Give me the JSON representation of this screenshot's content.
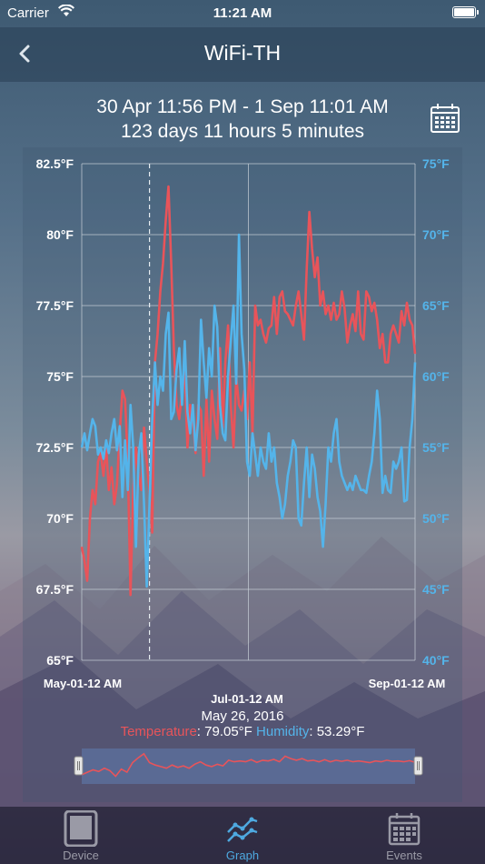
{
  "status_bar": {
    "carrier": "Carrier",
    "time": "11:21 AM"
  },
  "nav": {
    "title": "WiFi-TH"
  },
  "range": {
    "dates": "30 Apr 11:56 PM - 1 Sep 11:01 AM",
    "duration": "123 days 11 hours 5 minutes"
  },
  "tabs": [
    {
      "label": "Device",
      "icon": "tablet-icon",
      "active": false
    },
    {
      "label": "Graph",
      "icon": "line-graph-icon",
      "active": true
    },
    {
      "label": "Events",
      "icon": "calendar-icon",
      "active": false
    }
  ],
  "readout": {
    "date": "May 26, 2016",
    "temperature_label": "Temperature",
    "temperature_value": ": 79.05°F",
    "humidity_label": "Humidity",
    "humidity_value": ": 53.29°F"
  },
  "colors": {
    "temperature": "#e8545a",
    "humidity": "#54b4ea",
    "grid": "#c8d0d8"
  },
  "chart_data": {
    "type": "line",
    "x_ticks": [
      "May-01-12 AM",
      "Jul-01-12 AM",
      "Sep-01-12 AM"
    ],
    "y_left_ticks": [
      "82.5°F",
      "80°F",
      "77.5°F",
      "75°F",
      "72.5°F",
      "70°F",
      "67.5°F",
      "65°F"
    ],
    "y_right_ticks": [
      "75°F",
      "70°F",
      "65°F",
      "60°F",
      "55°F",
      "50°F",
      "45°F",
      "40°F"
    ],
    "y_left_range": [
      65,
      82.5
    ],
    "y_right_range": [
      40,
      75
    ],
    "x_range_days": [
      0,
      123
    ],
    "cursor_day": 25,
    "series": [
      {
        "name": "Temperature",
        "axis": "left",
        "values": [
          69,
          68.5,
          67.8,
          70,
          71,
          70.5,
          72,
          72.3,
          71.5,
          72.5,
          71,
          71.8,
          70.5,
          71.2,
          73,
          74.5,
          74.2,
          72,
          67.3,
          71,
          72.5,
          71.5,
          71,
          73.2,
          72,
          71,
          69.5,
          75.5,
          76.5,
          78,
          79,
          80.5,
          81.7,
          79,
          76,
          74,
          73.5,
          74.5,
          75.2,
          72.5,
          74,
          73.5,
          72.3,
          74,
          73.8,
          71.5,
          74.2,
          72,
          74.5,
          73.5,
          72.8,
          76,
          73.2,
          75.5,
          76.8,
          74,
          72.5,
          75,
          74,
          73.8,
          74.5,
          73.5,
          75.5,
          73,
          77.5,
          76.8,
          77,
          76.5,
          76.2,
          76.7,
          76.8,
          77.8,
          76.5,
          77.8,
          78,
          77.3,
          77.2,
          77,
          76.8,
          77.5,
          78,
          77.2,
          76.3,
          78.8,
          80.8,
          79.5,
          78.5,
          79.2,
          77.5,
          78,
          77.2,
          77.5,
          77,
          77.6,
          77,
          77.2,
          78,
          77.4,
          76.2,
          76.8,
          77.2,
          76.6,
          78,
          76.5,
          76.3,
          78,
          77.8,
          77.3,
          77.6,
          77,
          76,
          76.5,
          75.5,
          75.5,
          76.5,
          76.8,
          76.5,
          76.2,
          77.3,
          76.8,
          77.6,
          77,
          76.8,
          75.8
        ]
      },
      {
        "name": "Humidity",
        "axis": "right",
        "values": [
          55,
          56,
          54.8,
          56,
          57,
          56.5,
          54.5,
          55,
          54.2,
          55.5,
          54.6,
          56,
          57,
          54.8,
          56.5,
          51.5,
          55.5,
          52,
          58,
          55,
          48,
          54.5,
          56,
          51,
          45.2,
          51,
          57,
          61,
          58,
          60,
          59,
          63,
          64.5,
          57,
          57.5,
          60.5,
          62,
          58,
          62.5,
          57.5,
          56,
          58,
          54.8,
          57,
          64,
          61,
          58.5,
          62,
          60,
          65,
          63.5,
          58,
          56,
          55.5,
          60,
          62.5,
          65,
          59.5,
          70,
          63,
          60.5,
          54,
          53,
          56,
          54.5,
          53,
          55,
          54,
          53.5,
          56,
          54,
          55,
          52.5,
          51.5,
          50,
          51,
          53,
          54,
          55.5,
          55,
          50,
          49.5,
          52.5,
          55,
          51.5,
          54.5,
          53.5,
          51.5,
          50.5,
          48,
          51,
          55,
          54,
          56,
          57,
          54,
          53,
          52.5,
          52,
          52.5,
          52,
          53,
          52.5,
          52,
          52,
          51.8,
          53,
          54,
          56,
          59,
          57,
          51.8,
          53,
          52,
          51.8,
          54,
          53.5,
          54,
          55,
          51.2,
          51.3,
          55,
          57,
          61
        ]
      },
      {
        "name": "Overview",
        "axis": "left",
        "values": [
          68.5,
          70,
          71.5,
          70.5,
          72.5,
          71,
          67.5,
          72,
          70,
          76,
          79,
          81.5,
          76,
          74.5,
          73.5,
          72.5,
          74.5,
          73,
          74,
          72.5,
          75,
          76.5,
          74.5,
          73.5,
          75,
          74,
          77.5,
          76.5,
          77,
          76.5,
          77.8,
          76.2,
          77.5,
          77,
          78,
          76.5,
          80,
          78.5,
          77.5,
          78.5,
          77,
          77.5,
          76.5,
          77.8,
          76.5,
          77.5,
          76.8,
          77.5,
          76.5,
          77,
          76.5,
          76,
          77,
          76.5,
          77.5,
          76.8,
          77,
          76.5,
          77.2,
          76.2
        ]
      }
    ]
  }
}
